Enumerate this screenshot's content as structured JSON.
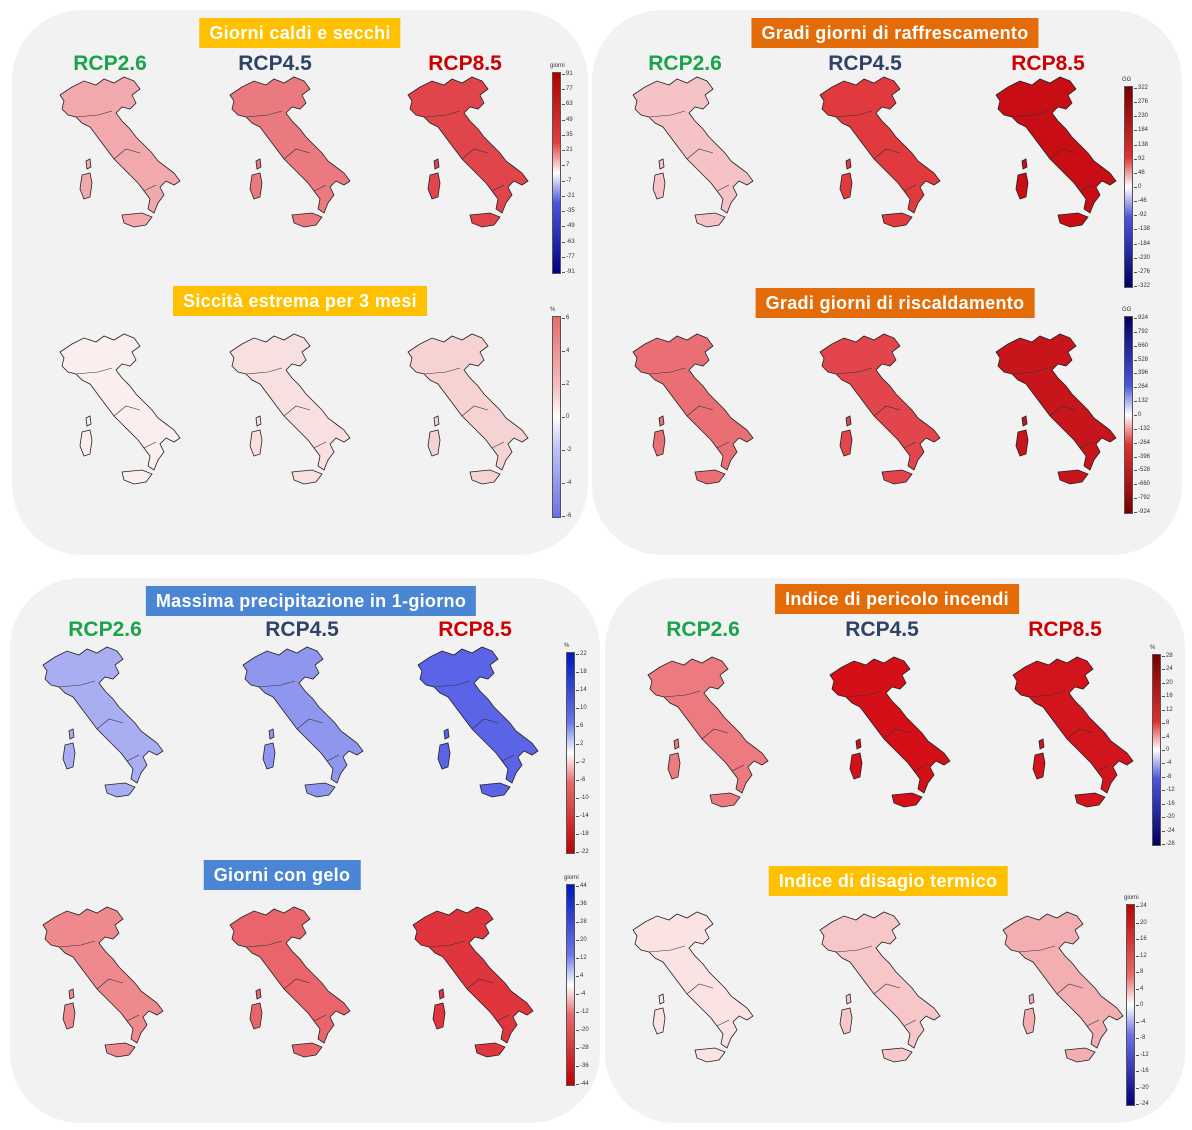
{
  "colors": {
    "green": "#1aa34a",
    "navy": "#2f4366",
    "red": "#cc0000",
    "yellow_bg": "#ffc000",
    "orange_bg": "#e36c09",
    "blue_bg": "#4a86d4"
  },
  "scenarios": [
    "RCP2.6",
    "RCP4.5",
    "RCP8.5"
  ],
  "indicators": [
    {
      "id": "giorni-caldi",
      "title": "Giorni caldi e secchi",
      "title_bg": "#ffc000",
      "unit": "giorni",
      "ticks": [
        "91",
        "77",
        "63",
        "49",
        "35",
        "21",
        "7",
        "-7",
        "-21",
        "-35",
        "-49",
        "-63",
        "-77",
        "-91"
      ],
      "gradient": "red-white-blue",
      "fills": [
        "#f2a9ad",
        "#ea7a7f",
        "#e0454c"
      ]
    },
    {
      "id": "siccita",
      "title": "Siccità estrema per 3 mesi",
      "title_bg": "#ffc000",
      "unit": "%",
      "ticks": [
        "6",
        "4",
        "2",
        "0",
        "-2",
        "-4",
        "-6"
      ],
      "gradient": "red-white-blue-light",
      "fills": [
        "#fbeeee",
        "#f8dfe0",
        "#f6d2d3"
      ]
    },
    {
      "id": "raffrescamento",
      "title": "Gradi giorni di raffrescamento",
      "title_bg": "#e36c09",
      "unit": "GG",
      "ticks": [
        "322",
        "276",
        "230",
        "184",
        "138",
        "92",
        "46",
        "0",
        "-46",
        "-92",
        "-138",
        "-184",
        "-230",
        "-276",
        "-322"
      ],
      "gradient": "darkred-white-navy",
      "fills": [
        "#f5c3c5",
        "#e03a3f",
        "#c80d14"
      ]
    },
    {
      "id": "riscaldamento",
      "title": "Gradi giorni di riscaldamento",
      "title_bg": "#e36c09",
      "unit": "GG",
      "ticks": [
        "924",
        "792",
        "660",
        "528",
        "396",
        "264",
        "132",
        "0",
        "-132",
        "-264",
        "-396",
        "-528",
        "-660",
        "-792",
        "-924"
      ],
      "gradient": "navy-white-darkred",
      "fills": [
        "#ea6f75",
        "#e2454b",
        "#c8141b"
      ]
    },
    {
      "id": "precipitazione",
      "title": "Massima precipitazione in 1-giorno",
      "title_bg": "#4a86d4",
      "unit": "%",
      "ticks": [
        "22",
        "18",
        "14",
        "10",
        "6",
        "2",
        "-2",
        "-6",
        "-10",
        "-14",
        "-18",
        "-22"
      ],
      "gradient": "blue-white-red",
      "fills": [
        "#a9aef2",
        "#8f96ee",
        "#5b63e6"
      ]
    },
    {
      "id": "gelo",
      "title": "Giorni con gelo",
      "title_bg": "#4a86d4",
      "unit": "giorni",
      "ticks": [
        "44",
        "36",
        "28",
        "20",
        "12",
        "4",
        "-4",
        "-12",
        "-20",
        "-28",
        "-36",
        "-44"
      ],
      "gradient": "blue-white-red",
      "fills": [
        "#ee8a8e",
        "#e9656b",
        "#e0353c"
      ]
    },
    {
      "id": "incendi",
      "title": "Indice  di pericolo incendi",
      "title_bg": "#e36c09",
      "unit": "%",
      "ticks": [
        "28",
        "24",
        "20",
        "16",
        "12",
        "8",
        "4",
        "0",
        "-4",
        "-8",
        "-12",
        "-16",
        "-20",
        "-24",
        "-28"
      ],
      "gradient": "darkred-white-navy",
      "fills": [
        "#ec7a80",
        "#d40f18",
        "#d2141c"
      ]
    },
    {
      "id": "disagio",
      "title": "Indice di disagio termico",
      "title_bg": "#ffc000",
      "unit": "giorni",
      "ticks": [
        "24",
        "20",
        "16",
        "12",
        "8",
        "4",
        "0",
        "-4",
        "-8",
        "-12",
        "-16",
        "-20",
        "-24"
      ],
      "gradient": "red-white-navy",
      "fills": [
        "#fbe3e4",
        "#f6c6c8",
        "#f2aeb1"
      ]
    }
  ]
}
